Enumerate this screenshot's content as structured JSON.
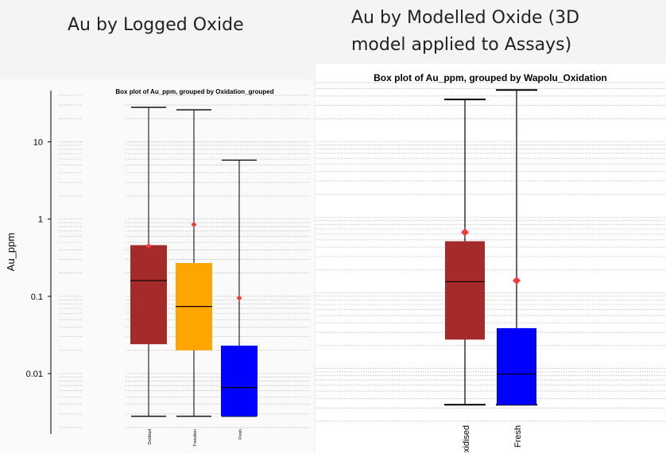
{
  "headings": {
    "left": "Au by Logged Oxide",
    "right_line1": "Au by Modelled Oxide (3D",
    "right_line2": "model applied to Assays)"
  },
  "chart_data": [
    {
      "type": "box",
      "title": "Box plot of Au_ppm, grouped by Oxidation_grouped",
      "xlabel": "",
      "ylabel": "Au_ppm",
      "yscale": "log",
      "ylim": [
        0.002,
        40
      ],
      "yticks": [
        10,
        1,
        0.1,
        0.01
      ],
      "ytick_labels": [
        "10",
        "1",
        "0.1",
        "0.01"
      ],
      "grid": true,
      "categories": [
        "Oxidised",
        "Transition",
        "Fresh"
      ],
      "colors": [
        "#a52a2a",
        "#ffa500",
        "#0000ff"
      ],
      "boxes": [
        {
          "min": 0.0028,
          "q1": 0.024,
          "median": 0.16,
          "q3": 0.46,
          "max": 28,
          "mean": 0.45
        },
        {
          "min": 0.0028,
          "q1": 0.02,
          "median": 0.074,
          "q3": 0.27,
          "max": 26,
          "mean": 0.85
        },
        {
          "min": 0.0028,
          "q1": 0.0028,
          "median": 0.0066,
          "q3": 0.023,
          "max": 5.8,
          "mean": 0.095
        }
      ]
    },
    {
      "type": "box",
      "title": "Box plot of Au_ppm, grouped by Wapolu_Oxidation",
      "xlabel": "",
      "ylabel": "",
      "yscale": "log",
      "ylim": [
        0.002,
        60
      ],
      "grid": true,
      "categories": [
        "Oxidised",
        "Fresh"
      ],
      "colors": [
        "#a52a2a",
        "#0000ff"
      ],
      "boxes": [
        {
          "min": 0.0033,
          "q1": 0.024,
          "median": 0.14,
          "q3": 0.48,
          "max": 36,
          "mean": 0.63
        },
        {
          "min": 0.0033,
          "q1": 0.0033,
          "median": 0.0084,
          "q3": 0.034,
          "max": 48,
          "mean": 0.145
        }
      ]
    }
  ]
}
